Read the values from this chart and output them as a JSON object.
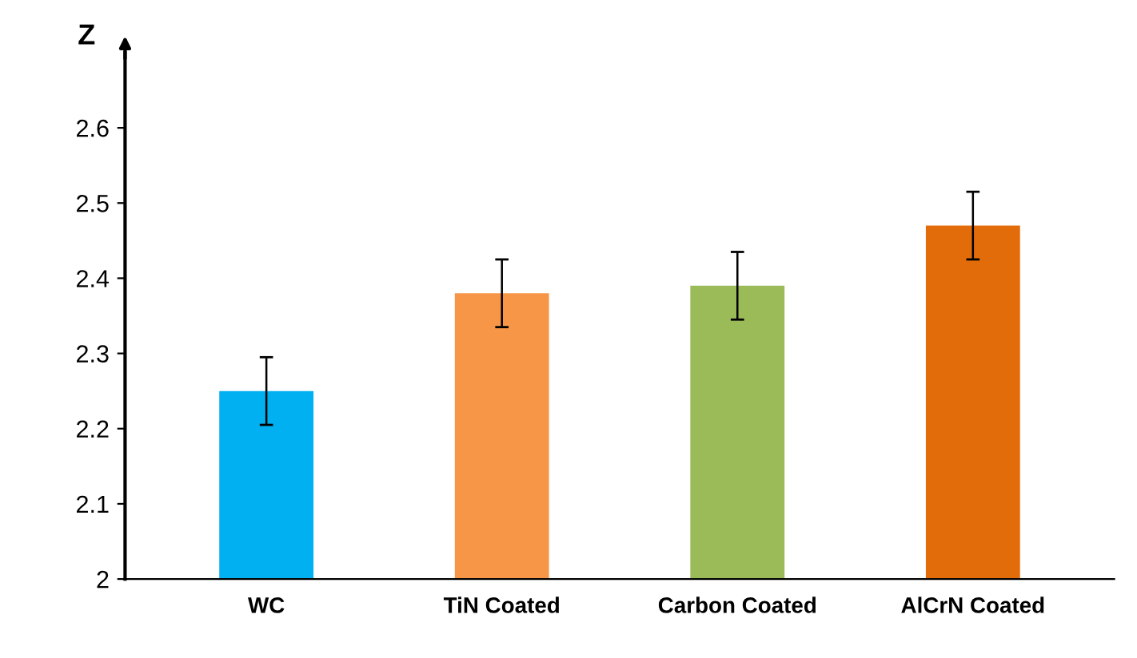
{
  "chart_data": {
    "type": "bar",
    "ylabel": "Z",
    "categories": [
      "WC",
      "TiN Coated",
      "Carbon Coated",
      "AlCrN Coated"
    ],
    "values": [
      2.25,
      2.38,
      2.39,
      2.47
    ],
    "errors": [
      0.045,
      0.045,
      0.045,
      0.045
    ],
    "colors": [
      "#00b0f0",
      "#f79646",
      "#9bbb59",
      "#e36c0a"
    ],
    "ylim": [
      2,
      2.7
    ],
    "yticks": [
      2,
      2.1,
      2.2,
      2.3,
      2.4,
      2.5,
      2.6
    ],
    "grid": false
  }
}
